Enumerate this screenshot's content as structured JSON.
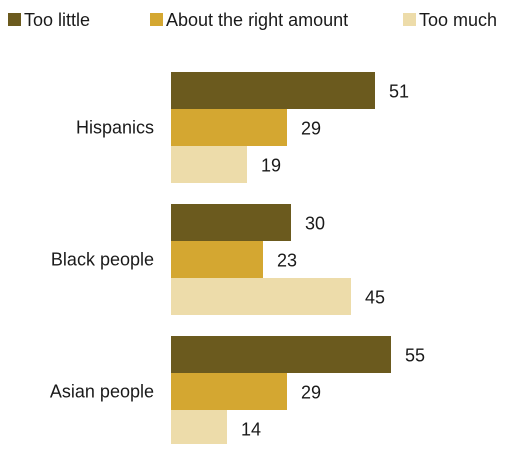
{
  "chart_data": {
    "type": "bar",
    "orientation": "horizontal",
    "categories": [
      "Hispanics",
      "Black people",
      "Asian people"
    ],
    "series": [
      {
        "name": "Too little",
        "values": [
          51,
          30,
          55
        ],
        "color": "#6b5a1e"
      },
      {
        "name": "About the right amount",
        "values": [
          29,
          23,
          29
        ],
        "color": "#d4a731"
      },
      {
        "name": "Too much",
        "values": [
          19,
          45,
          14
        ],
        "color": "#eddcaa"
      }
    ],
    "legend_position": "top",
    "grid": false,
    "xlim": [
      0,
      55
    ]
  }
}
